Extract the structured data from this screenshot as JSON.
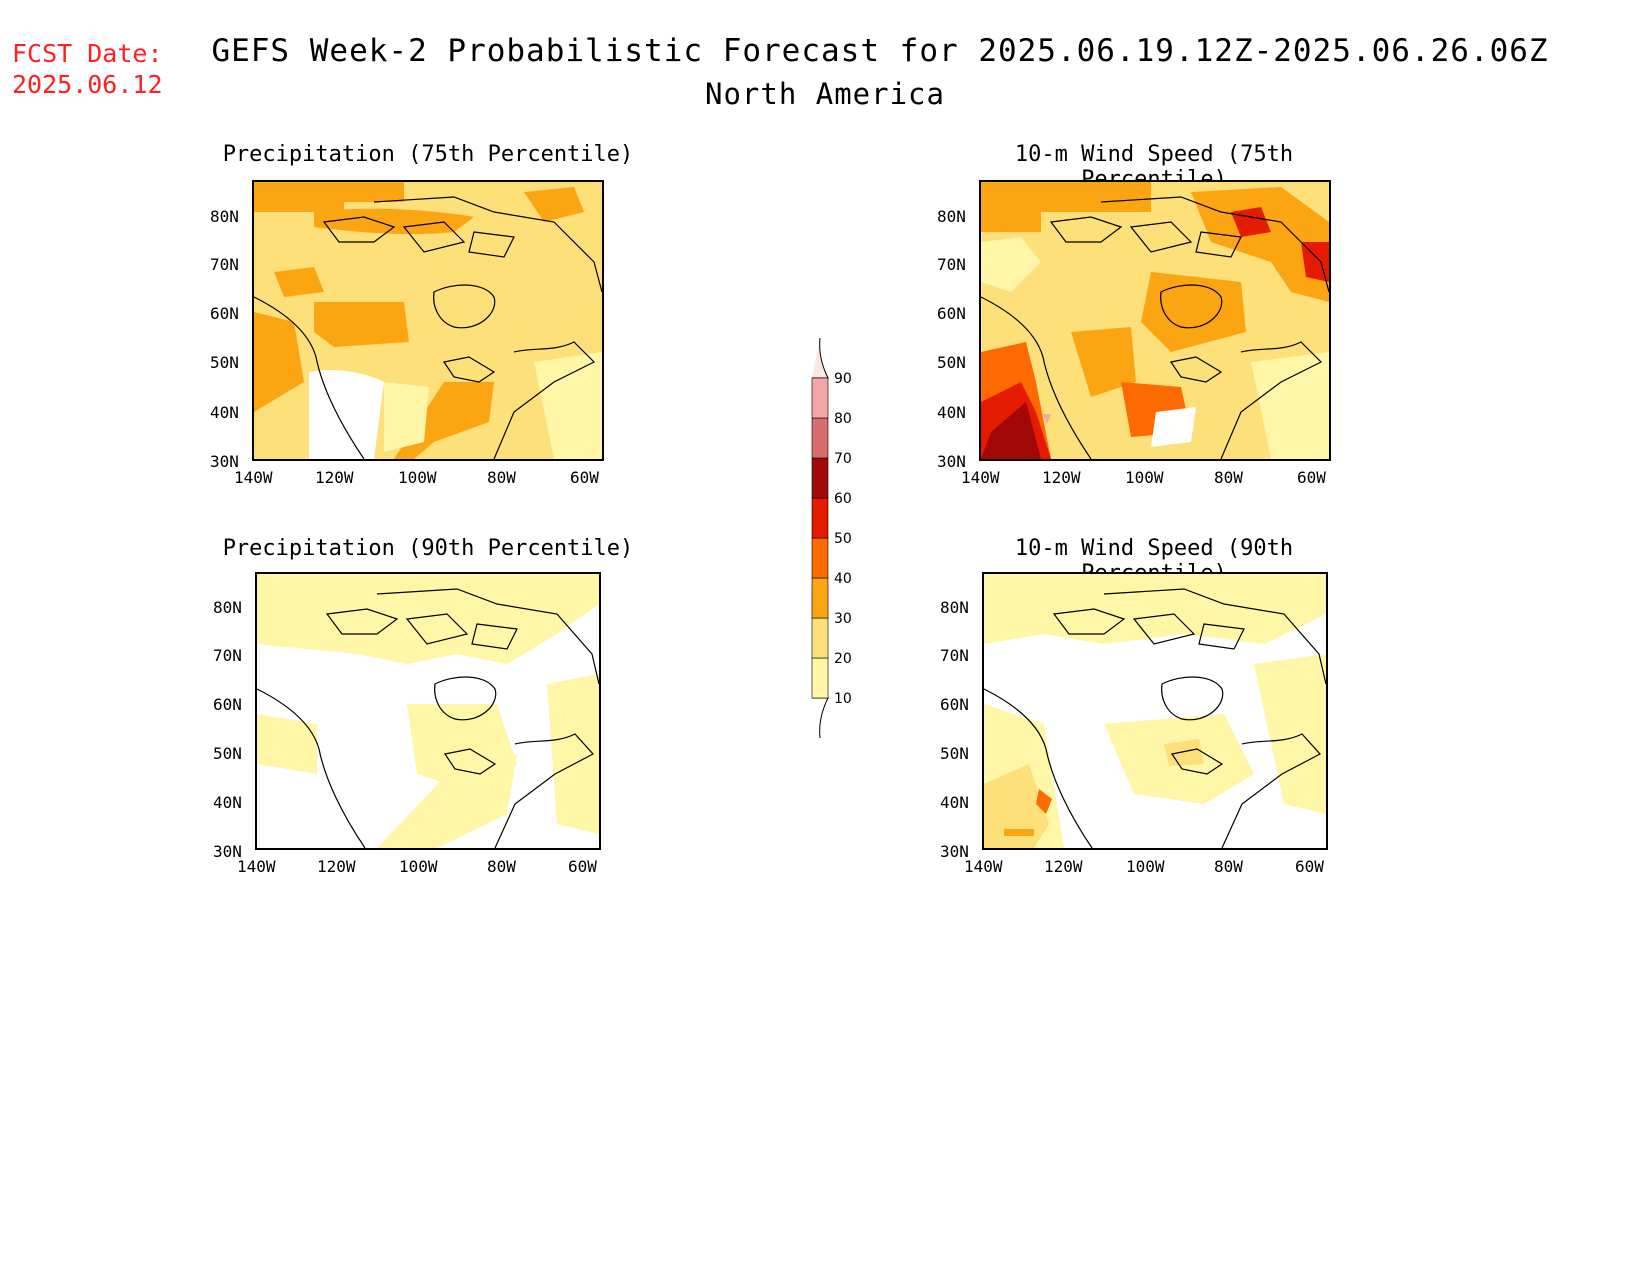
{
  "fcst": {
    "line1": "FCST Date:",
    "line2": "2025.06.12"
  },
  "title": {
    "main": "GEFS Week-2 Probabilistic Forecast for 2025.06.19.12Z-2025.06.26.06Z",
    "region": "North America"
  },
  "panels": [
    {
      "title": "Precipitation (75th Percentile)"
    },
    {
      "title": "10-m Wind Speed (75th Percentile)"
    },
    {
      "title": "Precipitation (90th Percentile)"
    },
    {
      "title": "10-m Wind Speed (90th Percentile)"
    }
  ],
  "axes": {
    "lat_labels": [
      "80N",
      "70N",
      "60N",
      "50N",
      "40N",
      "30N"
    ],
    "lon_labels": [
      "140W",
      "120W",
      "100W",
      "80W",
      "60W"
    ]
  },
  "colorbar": {
    "levels": [
      "10",
      "20",
      "30",
      "40",
      "50",
      "60",
      "70",
      "80",
      "90"
    ],
    "colors": [
      "#fff6a8",
      "#fde07a",
      "#fca512",
      "#fd6a02",
      "#e51b00",
      "#a10808",
      "#d76d6d",
      "#f3a6a6",
      "#fde6e6"
    ]
  }
}
